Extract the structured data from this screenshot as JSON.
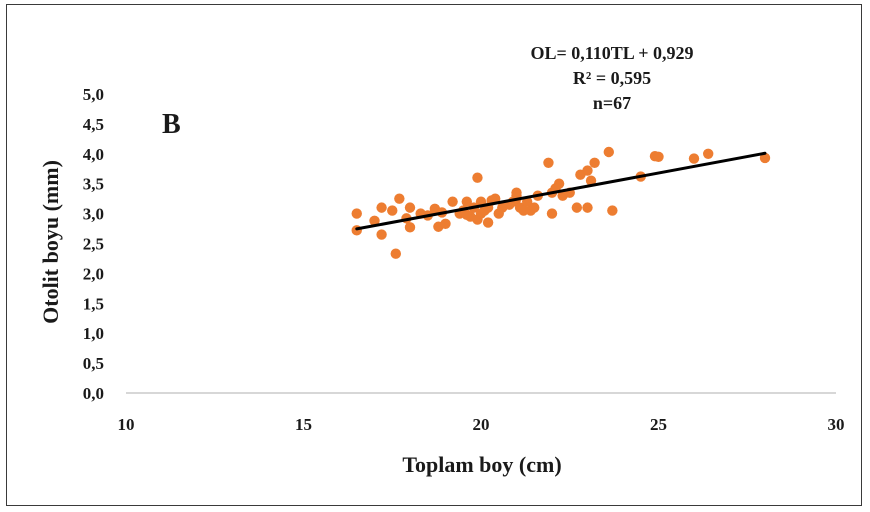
{
  "chart_data": {
    "type": "scatter",
    "panel_label": "B",
    "xlabel": "Toplam boy (cm)",
    "ylabel": "Otolit boyu (mm)",
    "xlim": [
      10,
      30
    ],
    "ylim": [
      0,
      5
    ],
    "x_ticks": [
      "10",
      "15",
      "20",
      "25",
      "30"
    ],
    "y_ticks": [
      "0,0",
      "0,5",
      "1,0",
      "1,5",
      "2,0",
      "2,5",
      "3,0",
      "3,5",
      "4,0",
      "4,5",
      "5,0"
    ],
    "annotations": [
      "OL= 0,110TL + 0,929",
      "R² = 0,595",
      "n=67"
    ],
    "grid": false,
    "marker_color": "#ED7D31",
    "trendline_color": "#000000",
    "trendline": {
      "slope": 0.11,
      "intercept": 0.929,
      "x_start": 16.5,
      "x_end": 28.0
    },
    "points": [
      [
        16.5,
        3.0
      ],
      [
        16.5,
        2.72
      ],
      [
        17.0,
        2.88
      ],
      [
        17.2,
        3.1
      ],
      [
        17.2,
        2.65
      ],
      [
        17.5,
        3.05
      ],
      [
        17.6,
        2.33
      ],
      [
        17.7,
        3.25
      ],
      [
        17.9,
        2.92
      ],
      [
        18.0,
        3.1
      ],
      [
        18.0,
        2.77
      ],
      [
        18.3,
        3.0
      ],
      [
        18.5,
        2.97
      ],
      [
        18.7,
        3.08
      ],
      [
        18.8,
        2.78
      ],
      [
        19.0,
        2.83
      ],
      [
        19.2,
        3.2
      ],
      [
        19.4,
        3.0
      ],
      [
        19.5,
        3.05
      ],
      [
        19.6,
        3.2
      ],
      [
        19.7,
        2.95
      ],
      [
        19.8,
        3.1
      ],
      [
        19.9,
        2.9
      ],
      [
        19.9,
        3.6
      ],
      [
        20.0,
        3.0
      ],
      [
        20.0,
        3.2
      ],
      [
        20.1,
        3.05
      ],
      [
        20.2,
        3.1
      ],
      [
        20.2,
        2.85
      ],
      [
        20.4,
        3.25
      ],
      [
        20.5,
        3.0
      ],
      [
        20.6,
        3.1
      ],
      [
        20.8,
        3.15
      ],
      [
        20.9,
        3.2
      ],
      [
        21.0,
        3.35
      ],
      [
        21.0,
        3.25
      ],
      [
        21.1,
        3.1
      ],
      [
        21.2,
        3.05
      ],
      [
        21.3,
        3.2
      ],
      [
        21.4,
        3.05
      ],
      [
        21.5,
        3.1
      ],
      [
        21.6,
        3.3
      ],
      [
        21.9,
        3.85
      ],
      [
        22.0,
        3.35
      ],
      [
        22.0,
        3.0
      ],
      [
        22.2,
        3.5
      ],
      [
        22.3,
        3.3
      ],
      [
        22.5,
        3.35
      ],
      [
        22.7,
        3.1
      ],
      [
        22.8,
        3.65
      ],
      [
        23.0,
        3.72
      ],
      [
        23.0,
        3.1
      ],
      [
        23.1,
        3.55
      ],
      [
        23.2,
        3.85
      ],
      [
        23.6,
        4.03
      ],
      [
        23.7,
        3.05
      ],
      [
        24.5,
        3.62
      ],
      [
        24.9,
        3.96
      ],
      [
        25.0,
        3.95
      ],
      [
        26.0,
        3.92
      ],
      [
        26.4,
        4.0
      ],
      [
        28.0,
        3.93
      ],
      [
        21.0,
        3.3
      ],
      [
        19.6,
        2.98
      ],
      [
        20.3,
        3.22
      ],
      [
        22.1,
        3.42
      ],
      [
        18.9,
        3.02
      ]
    ]
  }
}
